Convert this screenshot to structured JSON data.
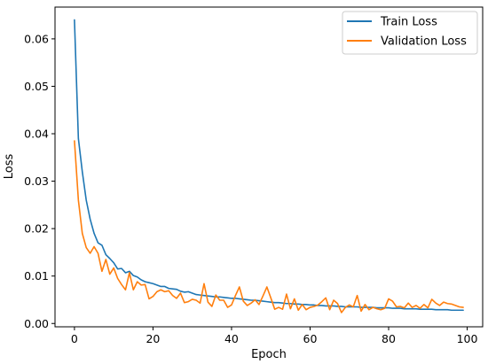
{
  "chart_data": {
    "type": "line",
    "xlabel": "Epoch",
    "ylabel": "Loss",
    "xlim": [
      -4.95,
      103.95
    ],
    "ylim": [
      -0.0007,
      0.0667
    ],
    "xticks": [
      0,
      20,
      40,
      60,
      80,
      100
    ],
    "yticks": [
      0.0,
      0.01,
      0.02,
      0.03,
      0.04,
      0.05,
      0.06
    ],
    "ytick_labels": [
      "0.00",
      "0.01",
      "0.02",
      "0.03",
      "0.04",
      "0.05",
      "0.06"
    ],
    "grid": false,
    "legend_position": "top-right",
    "series": [
      {
        "name": "Train Loss",
        "color": "#1f77b4",
        "x": [
          0,
          1,
          2,
          3,
          4,
          5,
          6,
          7,
          8,
          9,
          10,
          11,
          12,
          13,
          14,
          15,
          16,
          17,
          18,
          19,
          20,
          21,
          22,
          23,
          24,
          25,
          26,
          27,
          28,
          29,
          30,
          31,
          32,
          33,
          34,
          35,
          36,
          37,
          38,
          39,
          40,
          41,
          42,
          43,
          44,
          45,
          46,
          47,
          48,
          49,
          50,
          51,
          52,
          53,
          54,
          55,
          56,
          57,
          58,
          59,
          60,
          61,
          62,
          63,
          64,
          65,
          66,
          67,
          68,
          69,
          70,
          71,
          72,
          73,
          74,
          75,
          76,
          77,
          78,
          79,
          80,
          81,
          82,
          83,
          84,
          85,
          86,
          87,
          88,
          89,
          90,
          91,
          92,
          93,
          94,
          95,
          96,
          97,
          98,
          99
        ],
        "values": [
          0.064,
          0.039,
          0.032,
          0.026,
          0.022,
          0.019,
          0.017,
          0.0165,
          0.0145,
          0.0137,
          0.0128,
          0.0115,
          0.0116,
          0.0107,
          0.011,
          0.0101,
          0.0098,
          0.0092,
          0.0088,
          0.0086,
          0.0084,
          0.0081,
          0.0078,
          0.0078,
          0.0074,
          0.0073,
          0.0072,
          0.0068,
          0.0066,
          0.0067,
          0.0064,
          0.0061,
          0.006,
          0.0059,
          0.0058,
          0.0057,
          0.0056,
          0.0056,
          0.0055,
          0.0054,
          0.0053,
          0.0053,
          0.0052,
          0.0051,
          0.005,
          0.0049,
          0.0049,
          0.0048,
          0.0047,
          0.0046,
          0.0045,
          0.0044,
          0.0044,
          0.0043,
          0.0042,
          0.0042,
          0.0041,
          0.0041,
          0.004,
          0.004,
          0.0039,
          0.0039,
          0.0038,
          0.0038,
          0.0037,
          0.0037,
          0.0037,
          0.0036,
          0.0036,
          0.0035,
          0.0035,
          0.0035,
          0.0035,
          0.0034,
          0.0034,
          0.0034,
          0.0034,
          0.0033,
          0.0033,
          0.0033,
          0.0033,
          0.0032,
          0.0032,
          0.0032,
          0.0031,
          0.0031,
          0.0031,
          0.0031,
          0.003,
          0.003,
          0.003,
          0.003,
          0.0029,
          0.0029,
          0.0029,
          0.0029,
          0.0028,
          0.0028,
          0.0028,
          0.0028
        ]
      },
      {
        "name": "Validation Loss",
        "color": "#ff7f0e",
        "x": [
          0,
          1,
          2,
          3,
          4,
          5,
          6,
          7,
          8,
          9,
          10,
          11,
          12,
          13,
          14,
          15,
          16,
          17,
          18,
          19,
          20,
          21,
          22,
          23,
          24,
          25,
          26,
          27,
          28,
          29,
          30,
          31,
          32,
          33,
          34,
          35,
          36,
          37,
          38,
          39,
          40,
          41,
          42,
          43,
          44,
          45,
          46,
          47,
          48,
          49,
          50,
          51,
          52,
          53,
          54,
          55,
          56,
          57,
          58,
          59,
          60,
          61,
          62,
          63,
          64,
          65,
          66,
          67,
          68,
          69,
          70,
          71,
          72,
          73,
          74,
          75,
          76,
          77,
          78,
          79,
          80,
          81,
          82,
          83,
          84,
          85,
          86,
          87,
          88,
          89,
          90,
          91,
          92,
          93,
          94,
          95,
          96,
          97,
          98,
          99
        ],
        "values": [
          0.0385,
          0.026,
          0.019,
          0.016,
          0.0148,
          0.0162,
          0.0148,
          0.011,
          0.0135,
          0.0104,
          0.0117,
          0.0095,
          0.0082,
          0.0071,
          0.0107,
          0.0071,
          0.0088,
          0.0081,
          0.0082,
          0.0052,
          0.0057,
          0.0067,
          0.0071,
          0.0067,
          0.0069,
          0.0059,
          0.0053,
          0.0064,
          0.0044,
          0.0046,
          0.0051,
          0.0049,
          0.0043,
          0.0084,
          0.0045,
          0.0036,
          0.006,
          0.0049,
          0.0049,
          0.0034,
          0.0039,
          0.0059,
          0.0077,
          0.0047,
          0.0038,
          0.0043,
          0.005,
          0.004,
          0.0058,
          0.0077,
          0.0054,
          0.003,
          0.0034,
          0.003,
          0.0062,
          0.0031,
          0.0052,
          0.0028,
          0.004,
          0.0029,
          0.0034,
          0.0036,
          0.0039,
          0.0046,
          0.0054,
          0.0029,
          0.0049,
          0.0042,
          0.0023,
          0.0034,
          0.0039,
          0.0035,
          0.0059,
          0.0026,
          0.004,
          0.0029,
          0.0034,
          0.0031,
          0.0029,
          0.0032,
          0.0052,
          0.0047,
          0.0035,
          0.0036,
          0.0033,
          0.0043,
          0.0034,
          0.0038,
          0.0032,
          0.004,
          0.0033,
          0.0051,
          0.0043,
          0.0038,
          0.0045,
          0.0042,
          0.0041,
          0.0038,
          0.0035,
          0.0034
        ]
      }
    ]
  }
}
